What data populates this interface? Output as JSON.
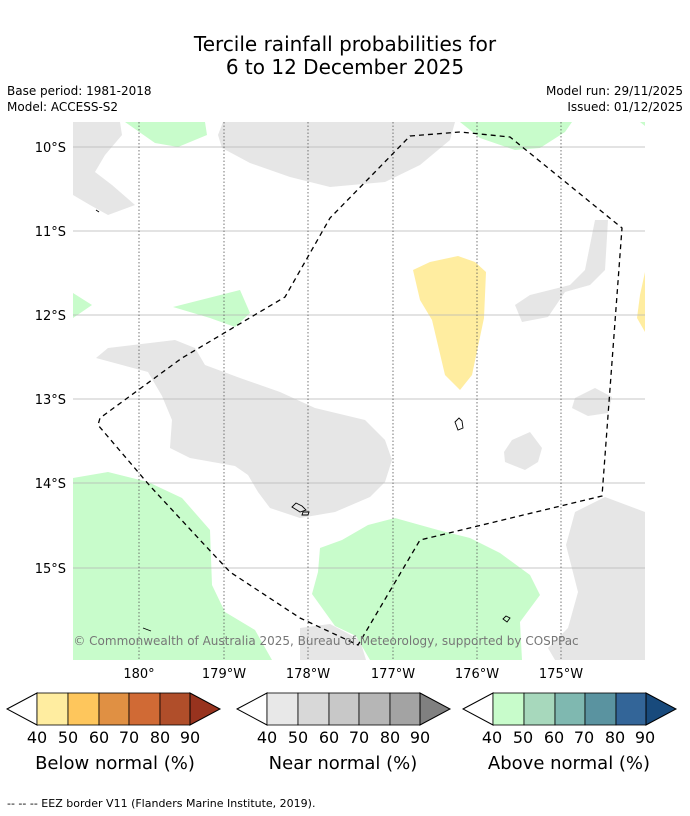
{
  "title_line1": "Tercile rainfall probabilities for",
  "title_line2": "6 to 12 December 2025",
  "base_period": "Base period: 1981-2018",
  "model": "Model: ACCESS-S2",
  "model_run": "Model run: 29/11/2025",
  "issued": "Issued: 01/12/2025",
  "lat_labels": [
    "10°S",
    "11°S",
    "12°S",
    "13°S",
    "14°S",
    "15°S"
  ],
  "lon_labels": [
    "180°",
    "179°W",
    "178°W",
    "177°W",
    "176°W",
    "175°W"
  ],
  "copyright": "© Commonwealth of Australia 2025, Bureau of Meteorology, supported by COSPPac",
  "colorbars": [
    {
      "label": "Below normal (%)",
      "ticks": [
        "40",
        "50",
        "60",
        "70",
        "80",
        "90"
      ],
      "colors": [
        "#ffeda0",
        "#fec65c",
        "#e09043",
        "#d06a35",
        "#b04e2a",
        "#98331e"
      ]
    },
    {
      "label": "Near normal (%)",
      "ticks": [
        "40",
        "50",
        "60",
        "70",
        "80",
        "90"
      ],
      "colors": [
        "#e8e8e8",
        "#d8d8d8",
        "#c8c8c8",
        "#b6b6b6",
        "#a3a3a3",
        "#808080"
      ]
    },
    {
      "label": "Above normal (%)",
      "ticks": [
        "40",
        "50",
        "60",
        "70",
        "80",
        "90"
      ],
      "colors": [
        "#c8fccb",
        "#a7d8bc",
        "#7fb8b0",
        "#5a93a0",
        "#336598",
        "#184a7c"
      ]
    }
  ],
  "footer": "--  --  -- EEZ border V11 (Flanders Marine Institute, 2019)."
}
